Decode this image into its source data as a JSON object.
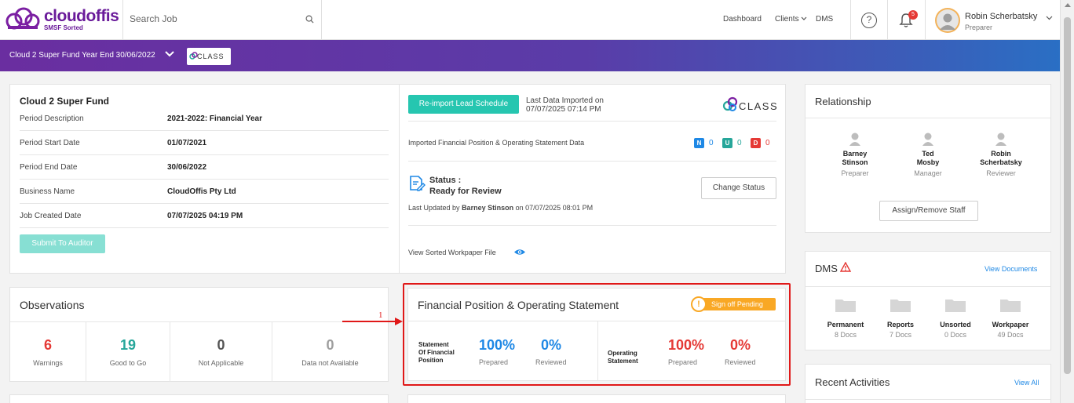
{
  "header": {
    "logo_text": "cloudoffis",
    "logo_sub": "SMSF Sorted",
    "search_placeholder": "Search Job",
    "nav": {
      "dashboard": "Dashboard",
      "clients": "Clients",
      "dms": "DMS"
    },
    "help_glyph": "?",
    "notification_count": "5",
    "user_name": "Robin Scherbatsky",
    "user_role": "Preparer"
  },
  "banner": {
    "title": "Cloud 2 Super Fund Year End 30/06/2022",
    "logo_text": "CLASS"
  },
  "fund": {
    "name": "Cloud 2 Super Fund",
    "rows": [
      {
        "label": "Period Description",
        "value": "2021-2022: Financial Year"
      },
      {
        "label": "Period Start Date",
        "value": "01/07/2021"
      },
      {
        "label": "Period End Date",
        "value": "30/06/2022"
      },
      {
        "label": "Business Name",
        "value": "CloudOffis Pty Ltd"
      },
      {
        "label": "Job Created Date",
        "value": "07/07/2025 04:19 PM"
      }
    ],
    "submit_label": "Submit To Auditor"
  },
  "import": {
    "reimport_label": "Re-import Lead Schedule",
    "last_imported_label": "Last Data Imported on",
    "last_imported_value": "07/07/2025 07:14 PM",
    "logo_text": "CLASS",
    "imported_text": "Imported Financial Position & Operating Statement Data",
    "tags": [
      {
        "letter": "N",
        "count": "0",
        "color": "#1e88e5"
      },
      {
        "letter": "U",
        "count": "0",
        "color": "#26a69a"
      },
      {
        "letter": "D",
        "count": "0",
        "color": "#e53935"
      }
    ],
    "status_label": "Status :",
    "status_value": "Ready for Review",
    "change_status_label": "Change Status",
    "updated_prefix": "Last Updated by",
    "updated_by": "Barney Stinson",
    "updated_suffix": "on 07/07/2025 08:01 PM",
    "view_file_label": "View Sorted Workpaper File"
  },
  "relationship": {
    "title": "Relationship",
    "staff": [
      {
        "first": "Barney",
        "last": "Stinson",
        "role": "Preparer"
      },
      {
        "first": "Ted",
        "last": "Mosby",
        "role": "Manager"
      },
      {
        "first": "Robin",
        "last": "Scherbatsky",
        "role": "Reviewer"
      }
    ],
    "assign_label": "Assign/Remove Staff"
  },
  "observations": {
    "title": "Observations",
    "items": [
      {
        "value": "6",
        "label": "Warnings",
        "color": "#e53935"
      },
      {
        "value": "19",
        "label": "Good to Go",
        "color": "#26a69a"
      },
      {
        "value": "0",
        "label": "Not Applicable",
        "color": "#555555"
      },
      {
        "value": "0",
        "label": "Data not Available",
        "color": "#9e9e9e"
      }
    ]
  },
  "financial": {
    "title": "Financial Position & Operating Statement",
    "signoff_label": "Sign off Pending",
    "sofp": {
      "label_1": "Statement",
      "label_2": "Of Financial",
      "label_3": "Position",
      "prepared": "100%",
      "reviewed": "0%",
      "color": "#1e88e5"
    },
    "ops": {
      "label_1": "Operating",
      "label_2": "Statement",
      "prepared": "100%",
      "reviewed": "0%",
      "color": "#e53935"
    },
    "prepared_label": "Prepared",
    "reviewed_label": "Reviewed"
  },
  "dms": {
    "title": "DMS",
    "view_label": "View Documents",
    "folders": [
      {
        "name": "Permanent",
        "count": "8 Docs"
      },
      {
        "name": "Reports",
        "count": "7 Docs"
      },
      {
        "name": "Unsorted",
        "count": "0 Docs"
      },
      {
        "name": "Workpaper",
        "count": "49 Docs"
      }
    ]
  },
  "recent": {
    "title": "Recent Activities",
    "view_label": "View All"
  },
  "annotation": {
    "number": "1"
  }
}
